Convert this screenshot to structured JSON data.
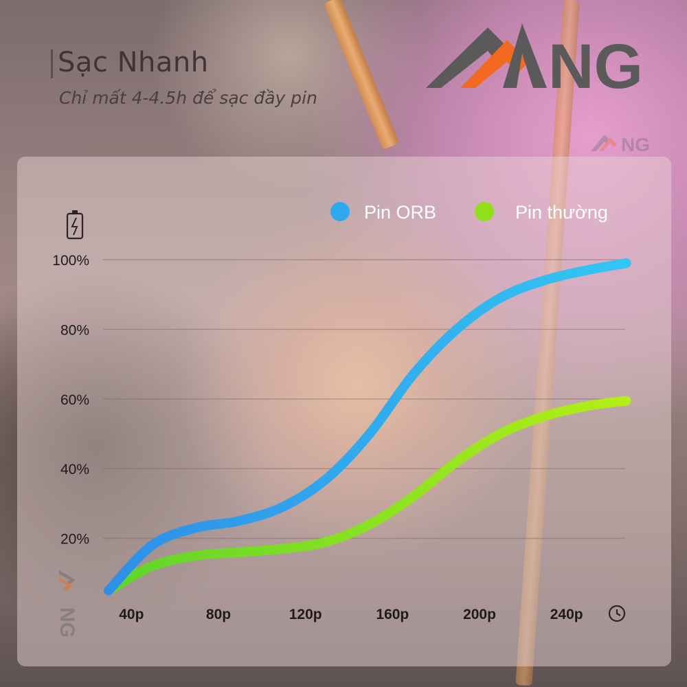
{
  "heading": {
    "title": "Sạc Nhanh",
    "subtitle": "Chỉ mất 4-4.5h để sạc đầy pin"
  },
  "brand": {
    "logo_text": "NG",
    "logo_colors": [
      "#5a5a5a",
      "#f26a21"
    ]
  },
  "icons": {
    "battery": "battery-charging-icon",
    "time": "clock-icon"
  },
  "chart_data": {
    "type": "line",
    "title": "",
    "xlabel": "",
    "ylabel": "",
    "categories": [
      "40p",
      "80p",
      "120p",
      "160p",
      "200p",
      "240p"
    ],
    "y_ticks": [
      "20%",
      "40%",
      "60%",
      "80%",
      "100%"
    ],
    "xlim": [
      20,
      260
    ],
    "ylim": [
      0,
      100
    ],
    "grid": true,
    "legend_position": "top-right",
    "series": [
      {
        "name": "Pin ORB",
        "color": "#2fa9ee",
        "x": [
          20,
          40,
          60,
          80,
          100,
          120,
          140,
          160,
          180,
          200,
          220,
          240,
          258
        ],
        "values": [
          5,
          18,
          23,
          25,
          29,
          37,
          50,
          67,
          80,
          89,
          94,
          97,
          99
        ]
      },
      {
        "name": "Pin thường",
        "color": "#8fe01a",
        "x": [
          20,
          40,
          60,
          80,
          100,
          120,
          140,
          160,
          180,
          200,
          220,
          240,
          258
        ],
        "values": [
          5,
          12,
          15,
          16,
          17,
          19,
          24,
          32,
          42,
          50,
          55,
          58,
          59.5
        ]
      }
    ]
  }
}
